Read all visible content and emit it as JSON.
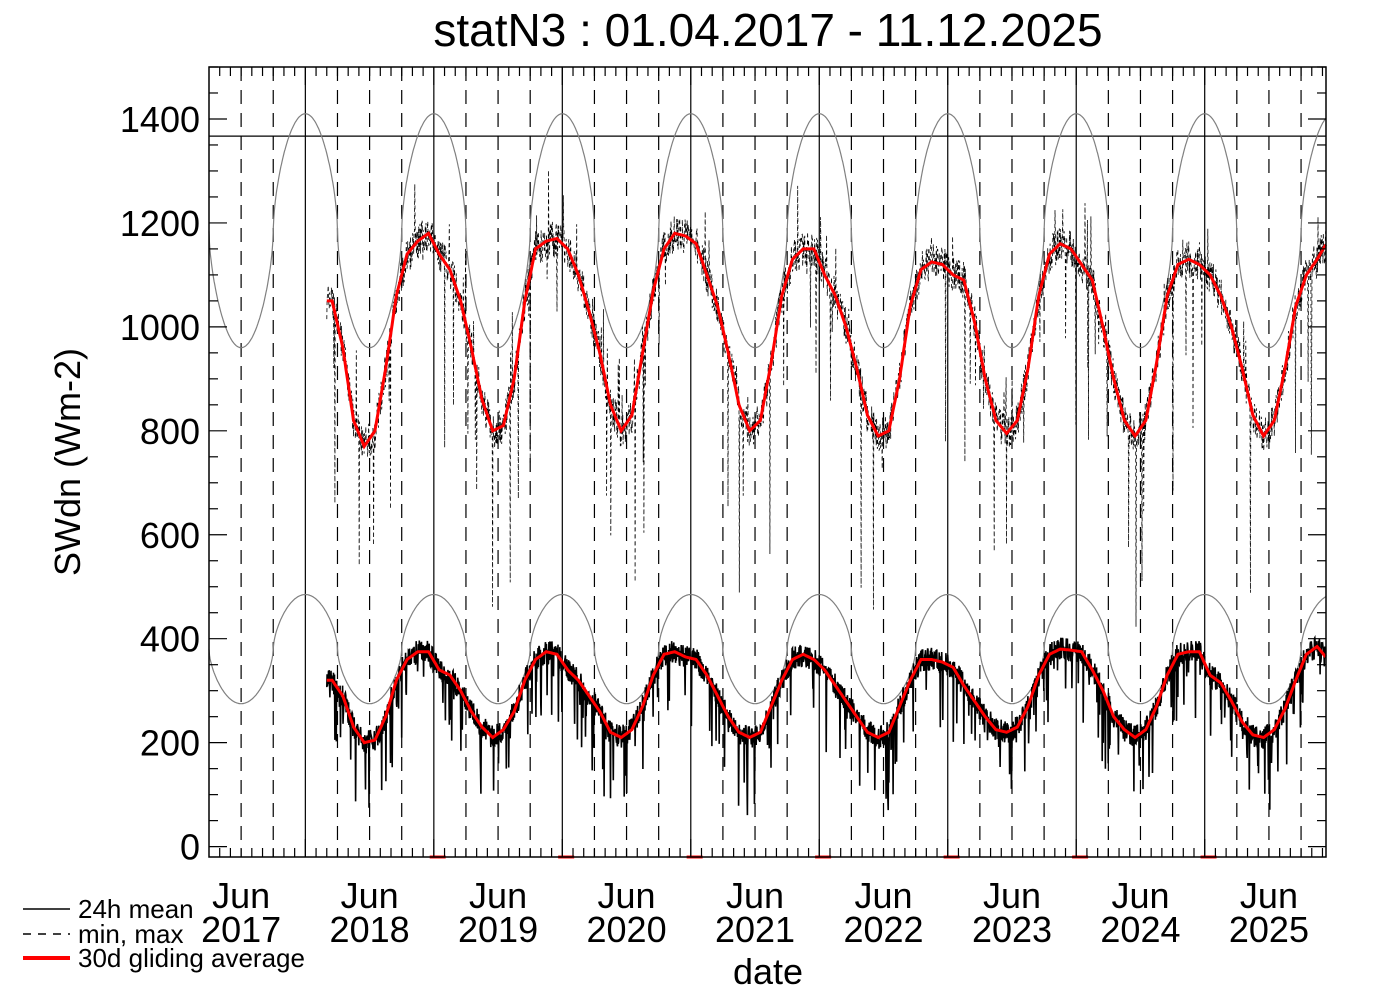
{
  "chart_data": {
    "type": "line",
    "title": "statN3 : 01.04.2017 - 11.12.2025",
    "xlabel": "date",
    "ylabel": "SWdn (Wm-2)",
    "xlim": [
      "2017-04-01",
      "2025-12-11"
    ],
    "ylim": [
      -20,
      1500
    ],
    "yticks": [
      0,
      200,
      400,
      600,
      800,
      1000,
      1200,
      1400
    ],
    "xticks": [
      {
        "date": "2017-07-01",
        "month": "Jun",
        "year": "2017"
      },
      {
        "date": "2018-07-01",
        "month": "Jun",
        "year": "2018"
      },
      {
        "date": "2019-07-01",
        "month": "Jun",
        "year": "2019"
      },
      {
        "date": "2020-07-01",
        "month": "Jun",
        "year": "2020"
      },
      {
        "date": "2021-07-01",
        "month": "Jun",
        "year": "2021"
      },
      {
        "date": "2022-07-01",
        "month": "Jun",
        "year": "2022"
      },
      {
        "date": "2023-07-01",
        "month": "Jun",
        "year": "2023"
      },
      {
        "date": "2024-07-01",
        "month": "Jun",
        "year": "2024"
      },
      {
        "date": "2025-07-01",
        "month": "Jun",
        "year": "2025"
      }
    ],
    "reference_line": 1367,
    "toa_curves": {
      "max": {
        "peak": 1410,
        "min": 960
      },
      "mean": {
        "peak": 485,
        "min": 275
      }
    },
    "legend": {
      "placement": "bottom-left",
      "entries": [
        {
          "label": "24h mean",
          "style": "solid",
          "color": "#000000"
        },
        {
          "label": "min, max",
          "style": "dashed",
          "color": "#000000"
        },
        {
          "label": "30d gliding average",
          "style": "solid",
          "color": "#ff0000"
        }
      ]
    },
    "series_start": "2018-03",
    "series": [
      {
        "name": "30d gliding average of max",
        "color": "#ff0000",
        "monthly": [
          1050,
          960,
          820,
          770,
          800,
          920,
          1060,
          1140,
          1165,
          1180,
          1140,
          1110,
          1050,
          960,
          860,
          800,
          810,
          900,
          1050,
          1150,
          1165,
          1170,
          1150,
          1100,
          1030,
          950,
          850,
          800,
          830,
          950,
          1070,
          1150,
          1180,
          1175,
          1160,
          1100,
          1040,
          950,
          850,
          800,
          820,
          930,
          1060,
          1130,
          1150,
          1150,
          1100,
          1060,
          1000,
          920,
          830,
          790,
          800,
          900,
          1040,
          1110,
          1125,
          1120,
          1100,
          1090,
          1010,
          900,
          820,
          795,
          820,
          920,
          1060,
          1140,
          1160,
          1150,
          1120,
          1090,
          1000,
          900,
          820,
          790,
          820,
          930,
          1060,
          1120,
          1130,
          1120,
          1100,
          1060,
          1000,
          920,
          830,
          790,
          820,
          920,
          1040,
          1100,
          1130,
          1165
        ]
      },
      {
        "name": "30d gliding average of 24h mean",
        "color": "#ff0000",
        "monthly": [
          320,
          290,
          230,
          200,
          205,
          250,
          320,
          360,
          375,
          375,
          340,
          330,
          300,
          260,
          230,
          210,
          225,
          260,
          320,
          360,
          375,
          370,
          340,
          320,
          290,
          260,
          220,
          210,
          225,
          270,
          330,
          370,
          375,
          365,
          360,
          330,
          290,
          250,
          220,
          210,
          220,
          270,
          320,
          360,
          370,
          360,
          340,
          310,
          280,
          250,
          220,
          210,
          220,
          270,
          320,
          360,
          360,
          355,
          345,
          310,
          280,
          250,
          225,
          220,
          230,
          270,
          330,
          370,
          380,
          378,
          375,
          340,
          300,
          250,
          225,
          210,
          225,
          270,
          330,
          370,
          375,
          375,
          330,
          315,
          280,
          240,
          215,
          210,
          225,
          265,
          320,
          370,
          385,
          360
        ]
      }
    ]
  }
}
